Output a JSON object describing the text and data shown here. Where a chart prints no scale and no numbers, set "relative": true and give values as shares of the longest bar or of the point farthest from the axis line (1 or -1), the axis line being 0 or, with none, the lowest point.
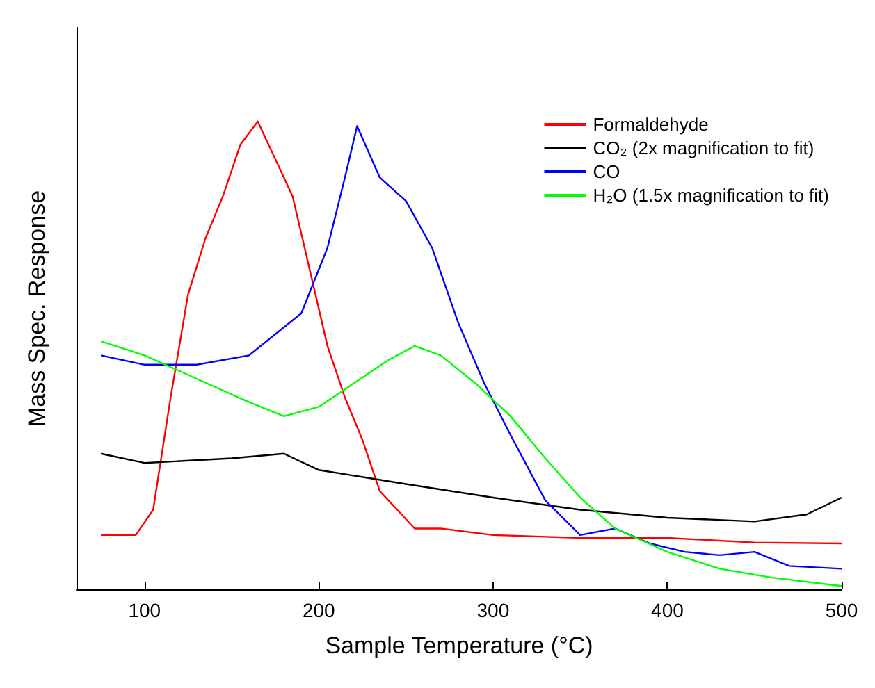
{
  "chart_data": {
    "type": "line",
    "relative": true,
    "xlabel": "Sample Temperature (°C)",
    "ylabel": "Mass Spec. Response",
    "xlim": [
      61,
      500
    ],
    "xticks": [
      100,
      200,
      300,
      400,
      500
    ],
    "grid": false,
    "legend": "top right",
    "marker": "none",
    "line_style": "solid",
    "series": [
      {
        "name": "Formaldehyde",
        "color": "#ff0000",
        "x": [
          75,
          95,
          105,
          115,
          125,
          135,
          145,
          155,
          165,
          175,
          185,
          195,
          205,
          215,
          225,
          235,
          245,
          255,
          270,
          300,
          350,
          400,
          450,
          500
        ],
        "values": [
          0.116,
          0.116,
          0.17,
          0.41,
          0.63,
          0.75,
          0.84,
          0.95,
          1.0,
          0.92,
          0.84,
          0.68,
          0.52,
          0.41,
          0.32,
          0.21,
          0.17,
          0.13,
          0.13,
          0.116,
          0.11,
          0.11,
          0.1,
          0.098
        ]
      },
      {
        "name": "CO₂ (2x magnification to fit)",
        "color": "#000000",
        "x": [
          75,
          100,
          150,
          180,
          200,
          250,
          300,
          350,
          400,
          450,
          480,
          500
        ],
        "values": [
          0.29,
          0.27,
          0.28,
          0.29,
          0.255,
          0.225,
          0.196,
          0.17,
          0.153,
          0.145,
          0.16,
          0.196
        ]
      },
      {
        "name": "CO",
        "color": "#0000ff",
        "x": [
          75,
          100,
          130,
          160,
          190,
          205,
          215,
          222,
          235,
          250,
          265,
          280,
          295,
          310,
          330,
          350,
          370,
          390,
          410,
          430,
          450,
          470,
          500
        ],
        "values": [
          0.5,
          0.48,
          0.48,
          0.5,
          0.59,
          0.73,
          0.88,
          0.99,
          0.88,
          0.83,
          0.73,
          0.57,
          0.44,
          0.33,
          0.19,
          0.116,
          0.13,
          0.098,
          0.08,
          0.073,
          0.08,
          0.05,
          0.044
        ]
      },
      {
        "name": "H₂O (1.5x magnification to fit)",
        "color": "#00ff00",
        "x": [
          75,
          100,
          130,
          160,
          180,
          200,
          220,
          240,
          255,
          270,
          290,
          310,
          330,
          350,
          370,
          400,
          430,
          460,
          500
        ],
        "values": [
          0.53,
          0.5,
          0.45,
          0.4,
          0.37,
          0.39,
          0.44,
          0.49,
          0.52,
          0.5,
          0.44,
          0.37,
          0.28,
          0.196,
          0.13,
          0.08,
          0.044,
          0.025,
          0.007
        ]
      }
    ]
  }
}
